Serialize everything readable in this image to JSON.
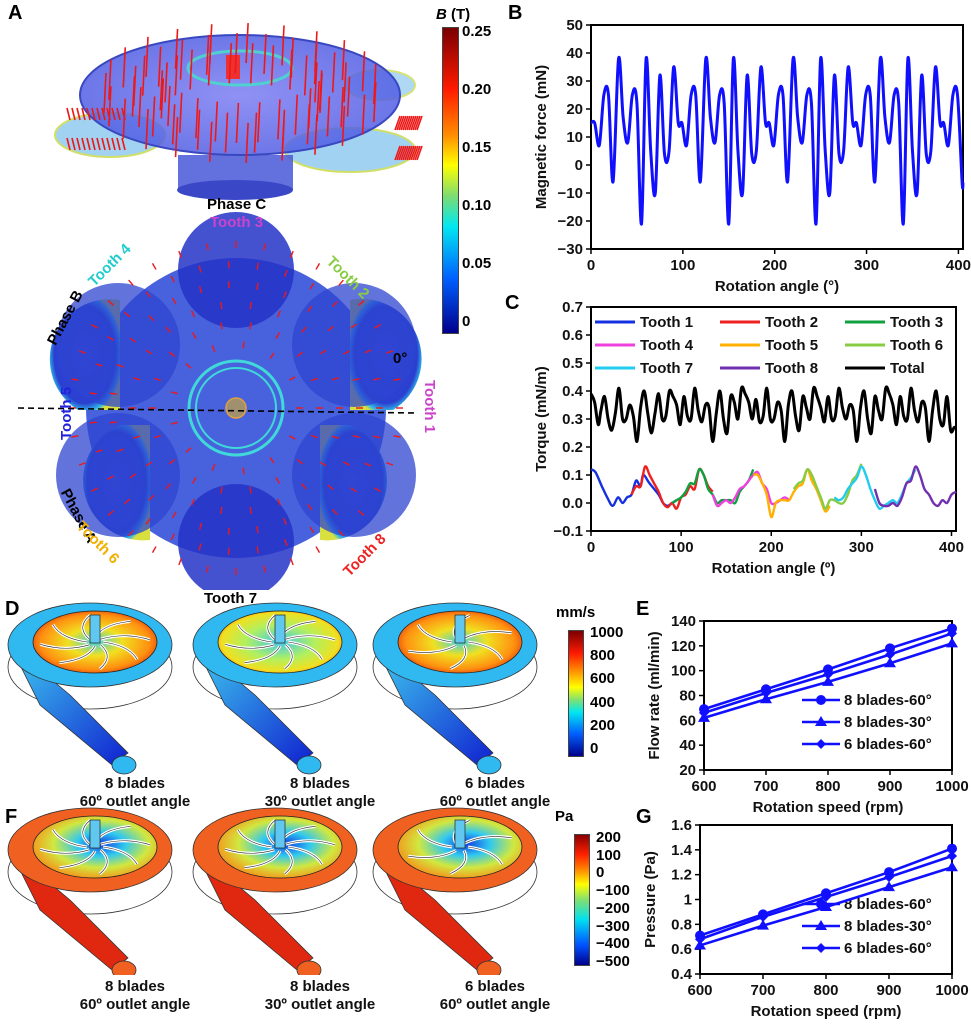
{
  "panels": {
    "A": {
      "letter": "A",
      "labels": {
        "phase_c": "Phase C",
        "phase_b": "Phase B",
        "phase_a": "Phase A",
        "tooth1": "Tooth 1",
        "tooth2": "Tooth 2",
        "tooth3": "Tooth 3",
        "tooth4": "Tooth 4",
        "tooth5": "Tooth 5",
        "tooth6": "Tooth 6",
        "tooth7": "Tooth 7",
        "tooth8": "Tooth 8",
        "zero_deg": "0°"
      },
      "label_colors": {
        "tooth1": "#cc44cc",
        "tooth2": "#88cc44",
        "tooth3": "#cc44cc",
        "tooth4": "#22cccc",
        "tooth5": "#2222dd",
        "tooth6": "#f0b000",
        "tooth7": "#111111",
        "tooth8": "#ee2222"
      },
      "colorbar": {
        "title_var": "B",
        "title_unit": " (T)",
        "ticks": [
          "0.25",
          "0.20",
          "0.15",
          "0.10",
          "0.05",
          "0"
        ]
      }
    },
    "D": {
      "letter": "D",
      "colorbar": {
        "unit": "mm/s",
        "ticks": [
          "1000",
          "800",
          "600",
          "400",
          "200",
          "0"
        ]
      },
      "captions": [
        {
          "line1": "8 blades",
          "line2": "60º outlet angle"
        },
        {
          "line1": "8 blades",
          "line2": "30º outlet angle"
        },
        {
          "line1": "6 blades",
          "line2": "60º outlet angle"
        }
      ]
    },
    "F": {
      "letter": "F",
      "colorbar": {
        "unit": "Pa",
        "ticks": [
          "200",
          "100",
          "0",
          "−100",
          "−200",
          "−300",
          "−400",
          "−500"
        ]
      },
      "captions": [
        {
          "line1": "8 blades",
          "line2": "60º outlet angle"
        },
        {
          "line1": "8 blades",
          "line2": "30º outlet angle"
        },
        {
          "line1": "6 blades",
          "line2": "60º outlet angle"
        }
      ]
    }
  },
  "chart_data": [
    {
      "id": "B",
      "type": "line",
      "letter": "B",
      "title": "",
      "xlabel": "Rotation angle (°)",
      "ylabel": "Magnetic force (mN)",
      "xlim": [
        0,
        405
      ],
      "ylim": [
        -30,
        50
      ],
      "xticks": [
        0,
        100,
        200,
        300,
        400
      ],
      "yticks": [
        -30,
        -20,
        -10,
        0,
        10,
        20,
        30,
        40,
        50
      ],
      "grid": false,
      "series": [
        {
          "name": "Magnetic force",
          "color": "#1010ff",
          "period": 95,
          "x": [
            0,
            4,
            9,
            14,
            19,
            24,
            30,
            35,
            40,
            45,
            50,
            55,
            60,
            65,
            70,
            75,
            80,
            85,
            90,
            95
          ],
          "values": [
            15,
            15,
            7,
            25,
            25,
            -6,
            38,
            17,
            8,
            25,
            22,
            -21,
            38,
            5,
            -10,
            32,
            4,
            5,
            35,
            15
          ]
        }
      ]
    },
    {
      "id": "C",
      "type": "line",
      "letter": "C",
      "title": "",
      "xlabel": "Rotation angle (º)",
      "ylabel": "Torque (mN/m)",
      "xlim": [
        0,
        405
      ],
      "ylim": [
        -0.1,
        0.7
      ],
      "xticks": [
        0,
        100,
        200,
        300,
        400
      ],
      "yticks": [
        "−0.1",
        "0.0",
        "0.1",
        "0.2",
        "0.3",
        "0.4",
        "0.5",
        "0.6",
        "0.7"
      ],
      "grid": false,
      "legend": "top",
      "series": [
        {
          "name": "Tooth 1",
          "color": "#1530e0",
          "x": [
            0,
            5,
            12,
            18,
            24,
            30,
            35,
            40,
            45,
            50,
            55,
            58,
            65,
            75,
            80,
            85,
            90,
            95
          ],
          "values": [
            0.12,
            0.11,
            0.06,
            0.02,
            -0.01,
            0.02,
            0.0,
            0.02,
            0.03,
            0.08,
            0.06,
            0.1,
            0.07,
            0.03,
            0.0,
            -0.01,
            0.0,
            0.01
          ]
        },
        {
          "name": "Tooth 2",
          "color": "#ee2020",
          "x": [
            45,
            50,
            55,
            60,
            65,
            70,
            75,
            80,
            85,
            90,
            95,
            100,
            105,
            110,
            115,
            120,
            125,
            130,
            135
          ],
          "values": [
            0.03,
            0.06,
            0.06,
            0.13,
            0.1,
            0.07,
            0.04,
            0.0,
            -0.015,
            0.0,
            -0.02,
            0.02,
            0.03,
            0.06,
            0.05,
            0.12,
            0.1,
            0.06,
            0.04
          ]
        },
        {
          "name": "Tooth 3",
          "color": "#10a040",
          "x": [
            90,
            95,
            100,
            105,
            110,
            115,
            120,
            125,
            130,
            135,
            140,
            145,
            150,
            155,
            160,
            165,
            170,
            175,
            180
          ],
          "values": [
            0.0,
            0.01,
            0.02,
            0.04,
            0.07,
            0.07,
            0.12,
            0.1,
            0.05,
            0.03,
            0.0,
            0.01,
            0.01,
            0.01,
            0.0,
            0.04,
            0.06,
            0.08,
            0.12
          ]
        },
        {
          "name": "Tooth 4",
          "color": "#ee40dd",
          "x": [
            135,
            140,
            145,
            150,
            155,
            160,
            165,
            170,
            175,
            180,
            185,
            190,
            195,
            200,
            205,
            210,
            215,
            220
          ],
          "values": [
            0.03,
            -0.01,
            0.0,
            0.01,
            0.0,
            0.02,
            0.05,
            0.06,
            0.08,
            0.1,
            0.11,
            0.07,
            0.05,
            0.0,
            0.0,
            0.01,
            0.02,
            0.01
          ]
        },
        {
          "name": "Tooth 5",
          "color": "#ffb000",
          "x": [
            180,
            185,
            190,
            195,
            200,
            205,
            210,
            215,
            220,
            225,
            230,
            235,
            240,
            245,
            250,
            255,
            260,
            265
          ],
          "values": [
            0.1,
            0.1,
            0.07,
            0.03,
            -0.05,
            0.0,
            0.01,
            0.01,
            0.01,
            0.04,
            0.06,
            0.07,
            0.12,
            0.08,
            0.05,
            0.01,
            -0.03,
            -0.01
          ]
        },
        {
          "name": "Tooth 6",
          "color": "#88cc44",
          "x": [
            225,
            230,
            235,
            240,
            245,
            250,
            255,
            260,
            265,
            270,
            275,
            280,
            285,
            290,
            295,
            300
          ],
          "values": [
            0.05,
            0.07,
            0.08,
            0.12,
            0.1,
            0.06,
            0.02,
            -0.02,
            0.01,
            0.01,
            0.0,
            0.0,
            0.03,
            0.08,
            0.1,
            0.14
          ]
        },
        {
          "name": "Tooth 7",
          "color": "#22ccee",
          "x": [
            270,
            275,
            280,
            285,
            290,
            295,
            300,
            305,
            310,
            315,
            320,
            325,
            330,
            335,
            340,
            345,
            350,
            355,
            360
          ],
          "values": [
            0.02,
            0.01,
            0.02,
            0.05,
            0.07,
            0.09,
            0.13,
            0.1,
            0.05,
            0.01,
            -0.02,
            -0.01,
            0.0,
            0.01,
            0.0,
            0.03,
            0.07,
            0.09,
            0.12
          ]
        },
        {
          "name": "Tooth 8",
          "color": "#7030b0",
          "x": [
            315,
            320,
            325,
            330,
            335,
            340,
            345,
            350,
            355,
            360,
            365,
            370,
            375,
            380,
            385,
            390,
            395,
            400,
            405
          ],
          "values": [
            0.05,
            0.0,
            -0.01,
            -0.01,
            0.0,
            -0.01,
            0.02,
            0.07,
            0.08,
            0.13,
            0.1,
            0.05,
            0.03,
            0.0,
            -0.01,
            0.01,
            0.0,
            0.03,
            0.04
          ]
        },
        {
          "name": "Total",
          "color": "#000000",
          "x": [
            0,
            4,
            8,
            11,
            15,
            19,
            23,
            27,
            31,
            35,
            39,
            43,
            47,
            51,
            55,
            59,
            63,
            67,
            71,
            75,
            79,
            83,
            87,
            91,
            95,
            99,
            103,
            107,
            111,
            115,
            119,
            123,
            127,
            131,
            135,
            139,
            143,
            147,
            151,
            155,
            159,
            163,
            167,
            171,
            175,
            179,
            183,
            187,
            191,
            195,
            199,
            203,
            207,
            211,
            215,
            219,
            223,
            227,
            231,
            235,
            239,
            243,
            247,
            251,
            255,
            259,
            263,
            267,
            271,
            275,
            279,
            283,
            287,
            291,
            295,
            299,
            303,
            307,
            311,
            315,
            319,
            323,
            327,
            331,
            335,
            339,
            343,
            347,
            351,
            355,
            359,
            363,
            367,
            371,
            375,
            379,
            383,
            387,
            391,
            395,
            399,
            403,
            405
          ],
          "values": [
            0.39,
            0.36,
            0.28,
            0.33,
            0.38,
            0.3,
            0.26,
            0.32,
            0.41,
            0.3,
            0.3,
            0.35,
            0.31,
            0.22,
            0.34,
            0.4,
            0.32,
            0.25,
            0.32,
            0.39,
            0.3,
            0.31,
            0.4,
            0.38,
            0.35,
            0.28,
            0.38,
            0.31,
            0.3,
            0.41,
            0.33,
            0.29,
            0.35,
            0.34,
            0.22,
            0.32,
            0.4,
            0.3,
            0.25,
            0.38,
            0.36,
            0.3,
            0.41,
            0.39,
            0.36,
            0.3,
            0.37,
            0.29,
            0.31,
            0.41,
            0.3,
            0.3,
            0.36,
            0.33,
            0.22,
            0.35,
            0.4,
            0.31,
            0.26,
            0.38,
            0.34,
            0.3,
            0.41,
            0.38,
            0.34,
            0.29,
            0.38,
            0.3,
            0.31,
            0.41,
            0.34,
            0.3,
            0.35,
            0.33,
            0.22,
            0.34,
            0.4,
            0.3,
            0.25,
            0.38,
            0.33,
            0.3,
            0.41,
            0.39,
            0.35,
            0.28,
            0.38,
            0.31,
            0.3,
            0.41,
            0.33,
            0.29,
            0.36,
            0.34,
            0.22,
            0.33,
            0.4,
            0.3,
            0.28,
            0.38,
            0.26,
            0.27,
            0.27
          ]
        }
      ]
    },
    {
      "id": "E",
      "type": "line",
      "letter": "E",
      "title": "",
      "xlabel": "Rotation speed (rpm)",
      "ylabel": "Flow rate (ml/min)",
      "xlim": [
        600,
        1000
      ],
      "ylim": [
        20,
        140
      ],
      "xticks": [
        600,
        700,
        800,
        900,
        1000
      ],
      "yticks": [
        20,
        40,
        60,
        80,
        100,
        120,
        140
      ],
      "grid": false,
      "legend": "bottom-right",
      "categories": [
        600,
        700,
        800,
        900,
        1000
      ],
      "series": [
        {
          "name": "8 blades-60°",
          "marker": "circle",
          "color": "#1010ff",
          "values": [
            69,
            85,
            101,
            118,
            134
          ]
        },
        {
          "name": "8 blades-30°",
          "marker": "triangle",
          "color": "#1010ff",
          "values": [
            62,
            77,
            91,
            106,
            122
          ]
        },
        {
          "name": "6 blades-60°",
          "marker": "diamond",
          "color": "#1010ff",
          "values": [
            66,
            82,
            97,
            113,
            130
          ]
        }
      ]
    },
    {
      "id": "G",
      "type": "line",
      "letter": "G",
      "title": "",
      "xlabel": "Rotation speed (rpm)",
      "ylabel": "Pressure (Pa)",
      "xlim": [
        600,
        1000
      ],
      "ylim": [
        0.4,
        1.6
      ],
      "xticks": [
        600,
        700,
        800,
        900,
        1000
      ],
      "yticks": [
        "0.4",
        "0.6",
        "0.8",
        "1",
        "1.2",
        "1.4",
        "1.6"
      ],
      "grid": false,
      "legend": "bottom-right",
      "categories": [
        600,
        700,
        800,
        900,
        1000
      ],
      "series": [
        {
          "name": "8 blades-60°",
          "marker": "circle",
          "color": "#1010ff",
          "values": [
            0.71,
            0.88,
            1.05,
            1.22,
            1.41
          ]
        },
        {
          "name": "8 blades-30°",
          "marker": "triangle",
          "color": "#1010ff",
          "values": [
            0.63,
            0.79,
            0.94,
            1.1,
            1.26
          ]
        },
        {
          "name": "6 blades-60°",
          "marker": "diamond",
          "color": "#1010ff",
          "values": [
            0.68,
            0.86,
            1.02,
            1.18,
            1.35
          ]
        }
      ]
    }
  ]
}
